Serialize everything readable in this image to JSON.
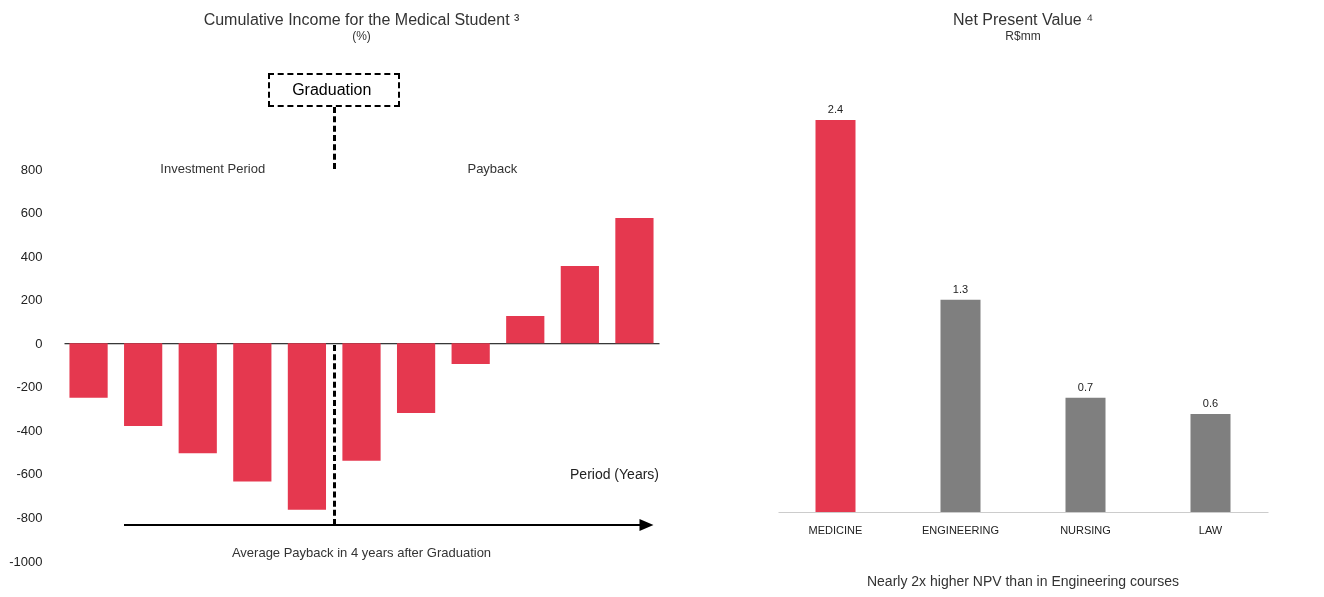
{
  "chart_data": [
    {
      "type": "bar",
      "title": "Cumulative Income for the Medical Student ³",
      "subtitle": "(%)",
      "xlabel": "Period (Years)",
      "categories": [
        null,
        null,
        null,
        null,
        null,
        null,
        null,
        null,
        null,
        null,
        null
      ],
      "values": [
        -250,
        -380,
        -505,
        -635,
        -765,
        -540,
        -320,
        -95,
        125,
        355,
        575
      ],
      "color": "#e5384f",
      "ylim": [
        -1000,
        800
      ],
      "yticks": [
        -1000,
        -800,
        -600,
        -400,
        -200,
        0,
        200,
        400,
        600,
        800
      ],
      "annotations": [
        "Graduation",
        "Investment Period",
        "Payback",
        "Average Payback in 4 years after Graduation"
      ]
    },
    {
      "type": "bar",
      "title": "Net Present Value ⁴",
      "subtitle": "R$mm",
      "categories": [
        "MEDICINE",
        "ENGINEERING",
        "NURSING",
        "LAW"
      ],
      "values": [
        2.4,
        1.3,
        0.7,
        0.6
      ],
      "colors": [
        "#e5384f",
        "#7f7f7f",
        "#7f7f7f",
        "#7f7f7f"
      ],
      "data_labels": true,
      "tick_labels": "x",
      "annotations": [
        "Nearly 2x higher NPV than in Engineering courses"
      ]
    }
  ]
}
